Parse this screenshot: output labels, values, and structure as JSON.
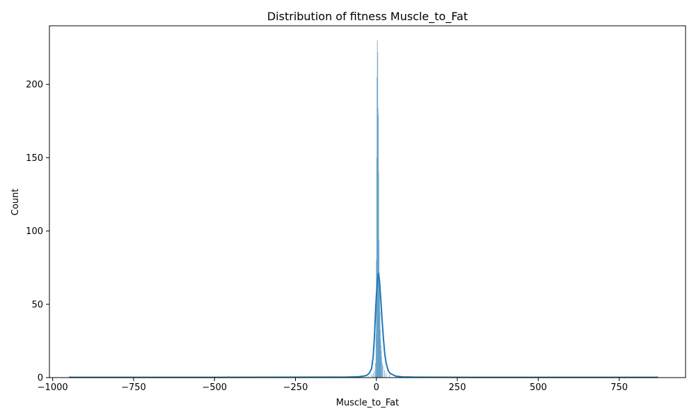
{
  "chart_data": {
    "type": "bar",
    "subtype": "histogram-with-kde",
    "title": "Distribution of fitness Muscle_to_Fat",
    "xlabel": "Muscle_to_Fat",
    "ylabel": "Count",
    "xlim": [
      -1010,
      955
    ],
    "ylim": [
      0,
      240
    ],
    "x_ticks": [
      -1000,
      -750,
      -500,
      -250,
      0,
      250,
      500,
      750
    ],
    "x_tick_labels": [
      "−1000",
      "−750",
      "−500",
      "−250",
      "0",
      "250",
      "500",
      "750"
    ],
    "y_ticks": [
      0,
      50,
      100,
      150,
      200
    ],
    "y_tick_labels": [
      "0",
      "50",
      "100",
      "150",
      "200"
    ],
    "grid": false,
    "legend": "none",
    "bar_color": "#5b9bc7",
    "line_color": "#1f77b4",
    "bins": [
      {
        "x": -945,
        "count": 1
      },
      {
        "x": -460,
        "count": 1
      },
      {
        "x": -265,
        "count": 1
      },
      {
        "x": -145,
        "count": 1
      },
      {
        "x": -60,
        "count": 1
      },
      {
        "x": -40,
        "count": 1
      },
      {
        "x": -25,
        "count": 1
      },
      {
        "x": -15,
        "count": 2
      },
      {
        "x": -10,
        "count": 3
      },
      {
        "x": -6,
        "count": 5
      },
      {
        "x": -3,
        "count": 10
      },
      {
        "x": -1,
        "count": 30
      },
      {
        "x": 0,
        "count": 80
      },
      {
        "x": 1,
        "count": 150
      },
      {
        "x": 2,
        "count": 205
      },
      {
        "x": 3,
        "count": 230
      },
      {
        "x": 4,
        "count": 222
      },
      {
        "x": 5,
        "count": 184
      },
      {
        "x": 6,
        "count": 179
      },
      {
        "x": 7,
        "count": 140
      },
      {
        "x": 8,
        "count": 94
      },
      {
        "x": 9,
        "count": 72
      },
      {
        "x": 10,
        "count": 58
      },
      {
        "x": 11,
        "count": 45
      },
      {
        "x": 12,
        "count": 33
      },
      {
        "x": 13,
        "count": 26
      },
      {
        "x": 14,
        "count": 22
      },
      {
        "x": 15,
        "count": 18
      },
      {
        "x": 16,
        "count": 14
      },
      {
        "x": 18,
        "count": 10
      },
      {
        "x": 20,
        "count": 8
      },
      {
        "x": 25,
        "count": 5
      },
      {
        "x": 30,
        "count": 3
      },
      {
        "x": 40,
        "count": 2
      },
      {
        "x": 60,
        "count": 1
      },
      {
        "x": 80,
        "count": 1
      },
      {
        "x": 100,
        "count": 1
      },
      {
        "x": 868,
        "count": 1
      }
    ],
    "kde": {
      "x": [
        -950,
        -500,
        -200,
        -100,
        -60,
        -40,
        -30,
        -22,
        -15,
        -10,
        -6,
        -2,
        0,
        2,
        4,
        6,
        8,
        10,
        14,
        18,
        22,
        26,
        30,
        36,
        42,
        50,
        60,
        80,
        120,
        300,
        600,
        870
      ],
      "y": [
        0.2,
        0.2,
        0.3,
        0.3,
        0.5,
        1,
        1.5,
        3,
        6,
        14,
        28,
        48,
        56,
        62,
        68,
        71,
        69,
        65,
        52,
        38,
        26,
        16,
        10,
        5,
        3,
        2,
        1,
        0.5,
        0.3,
        0.2,
        0.2,
        0.2
      ]
    }
  }
}
